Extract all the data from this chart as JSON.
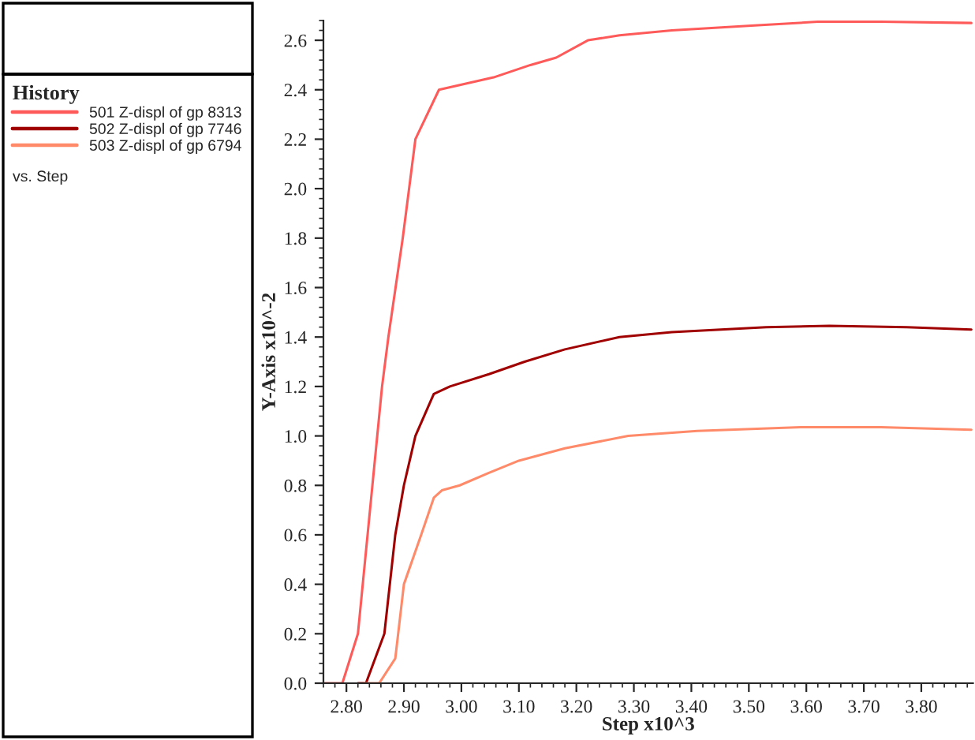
{
  "chart_data": {
    "type": "line",
    "xlabel": "Step x10^3",
    "ylabel": "Y-Axis x10^-2",
    "legend_title": "History",
    "legend": "left",
    "annotations": [
      "vs. Step"
    ],
    "xlim": [
      2.76,
      3.89
    ],
    "xticks": [
      {
        "value": 2.8,
        "label": "2.80"
      },
      {
        "value": 2.9,
        "label": "2.90"
      },
      {
        "value": 3.0,
        "label": "3.00"
      },
      {
        "value": 3.1,
        "label": "3.10"
      },
      {
        "value": 3.2,
        "label": "3.20"
      },
      {
        "value": 3.3,
        "label": "3.30"
      },
      {
        "value": 3.4,
        "label": "3.40"
      },
      {
        "value": 3.5,
        "label": "3.50"
      },
      {
        "value": 3.6,
        "label": "3.60"
      },
      {
        "value": 3.7,
        "label": "3.70"
      },
      {
        "value": 3.8,
        "label": "3.80"
      }
    ],
    "ylim": [
      0,
      2.68
    ],
    "yticks": [
      {
        "value": 0,
        "label": "0.0"
      },
      0.2,
      0.4,
      0.6,
      0.8,
      {
        "value": 1,
        "label": "1.0"
      },
      1.2,
      1.4,
      1.6,
      1.8,
      {
        "value": 2,
        "label": "2.0"
      },
      2.2,
      2.4,
      2.6
    ],
    "grid": false,
    "marker": "none",
    "line_style": "solid",
    "series": [
      {
        "name": "501 Z-displ of gp 8313",
        "color": "#ff5a5a",
        "x": [
          2.76,
          2.793,
          2.82,
          2.862,
          2.873,
          2.898,
          2.92,
          2.961,
          3.056,
          3.12,
          3.165,
          3.22,
          3.275,
          3.366,
          3.51,
          3.62,
          3.73,
          3.887
        ],
        "values": [
          0,
          0,
          0.2,
          1.2,
          1.4,
          1.8,
          2.2,
          2.4,
          2.45,
          2.5,
          2.53,
          2.6,
          2.62,
          2.64,
          2.66,
          2.675,
          2.675,
          2.67
        ]
      },
      {
        "name": "502 Z-displ of gp 7746",
        "color": "#a00000",
        "x": [
          2.82,
          2.834,
          2.866,
          2.885,
          2.9,
          2.92,
          2.952,
          2.98,
          3.048,
          3.11,
          3.18,
          3.275,
          3.366,
          3.53,
          3.64,
          3.775,
          3.887
        ],
        "values": [
          0,
          0,
          0.2,
          0.6,
          0.8,
          1.0,
          1.17,
          1.2,
          1.25,
          1.3,
          1.35,
          1.4,
          1.42,
          1.44,
          1.445,
          1.44,
          1.43
        ]
      },
      {
        "name": "503 Z-displ of gp 6794",
        "color": "#ff8a6a",
        "x": [
          2.83,
          2.857,
          2.885,
          2.9,
          2.93,
          2.952,
          2.966,
          2.997,
          3.047,
          3.1,
          3.18,
          3.29,
          3.41,
          3.59,
          3.73,
          3.887
        ],
        "values": [
          0,
          0,
          0.1,
          0.4,
          0.6,
          0.75,
          0.78,
          0.8,
          0.85,
          0.9,
          0.95,
          1.0,
          1.02,
          1.035,
          1.035,
          1.025
        ]
      }
    ]
  }
}
